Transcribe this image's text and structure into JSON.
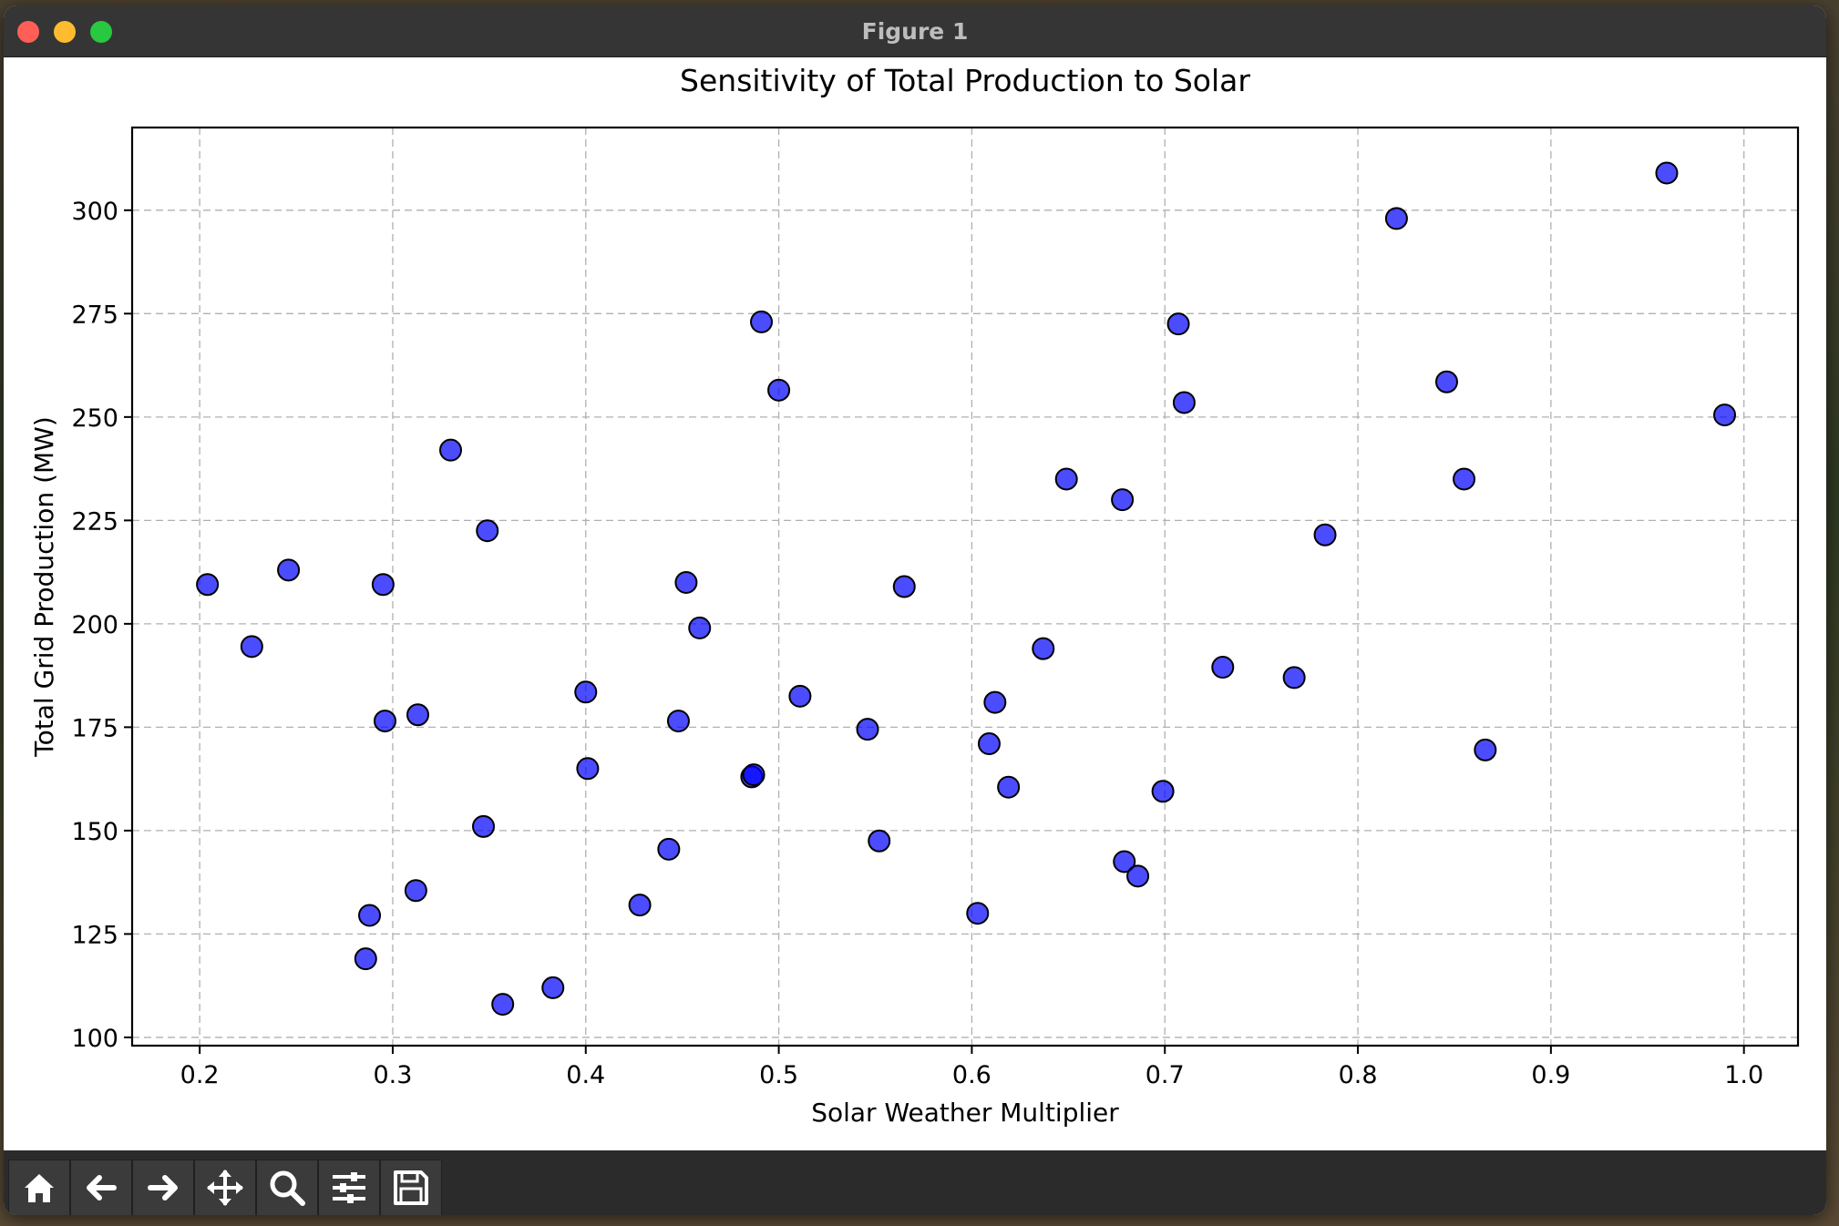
{
  "window": {
    "title": "Figure 1"
  },
  "toolbar": {
    "buttons": [
      {
        "name": "home-button",
        "icon": "home-icon"
      },
      {
        "name": "back-button",
        "icon": "arrow-left-icon"
      },
      {
        "name": "forward-button",
        "icon": "arrow-right-icon"
      },
      {
        "name": "pan-button",
        "icon": "move-icon"
      },
      {
        "name": "zoom-button",
        "icon": "magnifier-icon"
      },
      {
        "name": "configure-subplots-button",
        "icon": "sliders-icon"
      },
      {
        "name": "save-button",
        "icon": "floppy-disk-icon"
      }
    ]
  },
  "chart_data": {
    "type": "scatter",
    "title": "Sensitivity of Total Production to Solar",
    "xlabel": "Solar Weather Multiplier",
    "ylabel": "Total Grid Production (MW)",
    "xlim": [
      0.165,
      1.028
    ],
    "ylim": [
      98,
      320
    ],
    "xticks": [
      0.2,
      0.3,
      0.4,
      0.5,
      0.6,
      0.7,
      0.8,
      0.9,
      1.0
    ],
    "xtick_labels": [
      "0.2",
      "0.3",
      "0.4",
      "0.5",
      "0.6",
      "0.7",
      "0.8",
      "0.9",
      "1.0"
    ],
    "yticks": [
      100,
      125,
      150,
      175,
      200,
      225,
      250,
      275,
      300
    ],
    "ytick_labels": [
      "100",
      "125",
      "150",
      "175",
      "200",
      "225",
      "250",
      "275",
      "300"
    ],
    "grid": true,
    "marker_color": "#0000ff",
    "marker_edge_color": "#000000",
    "marker_alpha": 0.7,
    "points": [
      [
        0.204,
        209.5
      ],
      [
        0.227,
        194.5
      ],
      [
        0.246,
        213
      ],
      [
        0.286,
        119
      ],
      [
        0.288,
        129.5
      ],
      [
        0.295,
        209.5
      ],
      [
        0.296,
        176.5
      ],
      [
        0.312,
        135.5
      ],
      [
        0.313,
        178
      ],
      [
        0.33,
        242
      ],
      [
        0.347,
        151
      ],
      [
        0.349,
        222.5
      ],
      [
        0.357,
        108
      ],
      [
        0.383,
        112
      ],
      [
        0.4,
        183.5
      ],
      [
        0.401,
        165
      ],
      [
        0.428,
        132
      ],
      [
        0.443,
        145.5
      ],
      [
        0.448,
        176.5
      ],
      [
        0.452,
        210
      ],
      [
        0.459,
        199
      ],
      [
        0.486,
        163
      ],
      [
        0.487,
        163.5
      ],
      [
        0.491,
        273
      ],
      [
        0.5,
        256.5
      ],
      [
        0.511,
        182.5
      ],
      [
        0.546,
        174.5
      ],
      [
        0.552,
        147.5
      ],
      [
        0.565,
        209
      ],
      [
        0.603,
        130
      ],
      [
        0.609,
        171
      ],
      [
        0.612,
        181
      ],
      [
        0.619,
        160.5
      ],
      [
        0.637,
        194
      ],
      [
        0.649,
        235
      ],
      [
        0.678,
        230
      ],
      [
        0.679,
        142.5
      ],
      [
        0.686,
        139
      ],
      [
        0.699,
        159.5
      ],
      [
        0.707,
        272.5
      ],
      [
        0.71,
        253.5
      ],
      [
        0.73,
        189.5
      ],
      [
        0.767,
        187
      ],
      [
        0.783,
        221.5
      ],
      [
        0.82,
        298
      ],
      [
        0.846,
        258.5
      ],
      [
        0.855,
        235
      ],
      [
        0.866,
        169.5
      ],
      [
        0.96,
        309
      ],
      [
        0.99,
        250.5
      ]
    ]
  }
}
